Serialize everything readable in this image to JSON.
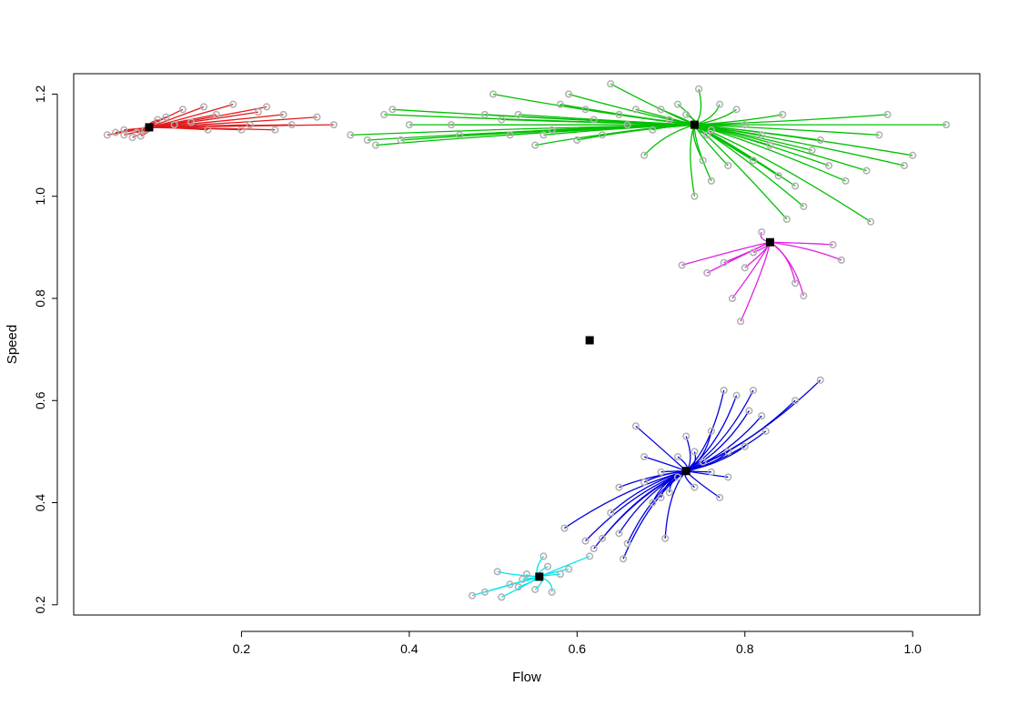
{
  "chart_data": {
    "type": "scatter",
    "title": "",
    "xlabel": "Flow",
    "ylabel": "Speed",
    "xlim": [
      0.0,
      1.08
    ],
    "ylim": [
      0.18,
      1.24
    ],
    "x_ticks": [
      0.2,
      0.4,
      0.6,
      0.8,
      1.0
    ],
    "x_tick_labels": [
      "0.2",
      "0.4",
      "0.6",
      "0.8",
      "1.0"
    ],
    "y_ticks": [
      0.2,
      0.4,
      0.6,
      0.8,
      1.0,
      1.2
    ],
    "y_tick_labels": [
      "0.2",
      "0.4",
      "0.6",
      "0.8",
      "1.0",
      "1.2"
    ],
    "grid": false,
    "legend": "none",
    "point_color": "#b0b0b0",
    "center_color": "#000000",
    "centers": [
      {
        "x": 0.09,
        "y": 1.135
      },
      {
        "x": 0.74,
        "y": 1.14
      },
      {
        "x": 0.83,
        "y": 0.91
      },
      {
        "x": 0.615,
        "y": 0.718
      },
      {
        "x": 0.73,
        "y": 0.462
      },
      {
        "x": 0.555,
        "y": 0.255
      }
    ],
    "series": [
      {
        "color": "#e31a1c",
        "center": {
          "x": 0.09,
          "y": 1.135
        },
        "points": [
          [
            0.04,
            1.12
          ],
          [
            0.05,
            1.125
          ],
          [
            0.06,
            1.12
          ],
          [
            0.07,
            1.115
          ],
          [
            0.08,
            1.118
          ],
          [
            0.085,
            1.13
          ],
          [
            0.1,
            1.15
          ],
          [
            0.11,
            1.155
          ],
          [
            0.13,
            1.17
          ],
          [
            0.14,
            1.145
          ],
          [
            0.155,
            1.175
          ],
          [
            0.17,
            1.16
          ],
          [
            0.19,
            1.18
          ],
          [
            0.2,
            1.13
          ],
          [
            0.22,
            1.165
          ],
          [
            0.23,
            1.175
          ],
          [
            0.25,
            1.16
          ],
          [
            0.26,
            1.14
          ],
          [
            0.29,
            1.155
          ],
          [
            0.31,
            1.14
          ],
          [
            0.06,
            1.13
          ],
          [
            0.075,
            1.125
          ],
          [
            0.12,
            1.14
          ],
          [
            0.16,
            1.13
          ],
          [
            0.21,
            1.14
          ],
          [
            0.24,
            1.13
          ]
        ]
      },
      {
        "color": "#00c000",
        "center": {
          "x": 0.74,
          "y": 1.14
        },
        "points": [
          [
            0.33,
            1.12
          ],
          [
            0.35,
            1.11
          ],
          [
            0.36,
            1.1
          ],
          [
            0.37,
            1.16
          ],
          [
            0.38,
            1.17
          ],
          [
            0.39,
            1.11
          ],
          [
            0.4,
            1.14
          ],
          [
            0.45,
            1.14
          ],
          [
            0.46,
            1.12
          ],
          [
            0.49,
            1.16
          ],
          [
            0.5,
            1.2
          ],
          [
            0.51,
            1.15
          ],
          [
            0.52,
            1.12
          ],
          [
            0.53,
            1.16
          ],
          [
            0.55,
            1.1
          ],
          [
            0.56,
            1.12
          ],
          [
            0.57,
            1.13
          ],
          [
            0.58,
            1.18
          ],
          [
            0.59,
            1.2
          ],
          [
            0.6,
            1.11
          ],
          [
            0.61,
            1.17
          ],
          [
            0.62,
            1.15
          ],
          [
            0.63,
            1.12
          ],
          [
            0.64,
            1.22
          ],
          [
            0.65,
            1.16
          ],
          [
            0.66,
            1.14
          ],
          [
            0.67,
            1.17
          ],
          [
            0.68,
            1.08
          ],
          [
            0.69,
            1.13
          ],
          [
            0.7,
            1.17
          ],
          [
            0.71,
            1.15
          ],
          [
            0.72,
            1.18
          ],
          [
            0.73,
            1.16
          ],
          [
            0.745,
            1.21
          ],
          [
            0.75,
            1.07
          ],
          [
            0.755,
            1.12
          ],
          [
            0.76,
            1.03
          ],
          [
            0.77,
            1.18
          ],
          [
            0.78,
            1.06
          ],
          [
            0.79,
            1.17
          ],
          [
            0.8,
            1.14
          ],
          [
            0.81,
            1.07
          ],
          [
            0.82,
            1.12
          ],
          [
            0.83,
            1.1
          ],
          [
            0.84,
            1.04
          ],
          [
            0.845,
            1.16
          ],
          [
            0.86,
            1.02
          ],
          [
            0.87,
            0.98
          ],
          [
            0.89,
            1.11
          ],
          [
            0.9,
            1.06
          ],
          [
            0.92,
            1.03
          ],
          [
            0.95,
            0.95
          ],
          [
            0.97,
            1.16
          ],
          [
            0.99,
            1.06
          ],
          [
            1.0,
            1.08
          ],
          [
            1.04,
            1.14
          ],
          [
            0.945,
            1.05
          ],
          [
            0.96,
            1.12
          ],
          [
            0.85,
            0.955
          ],
          [
            0.74,
            1.0
          ],
          [
            0.76,
            1.13
          ],
          [
            0.88,
            1.09
          ]
        ]
      },
      {
        "color": "#e020e0",
        "center": {
          "x": 0.83,
          "y": 0.91
        },
        "points": [
          [
            0.725,
            0.865
          ],
          [
            0.755,
            0.85
          ],
          [
            0.775,
            0.87
          ],
          [
            0.785,
            0.8
          ],
          [
            0.795,
            0.755
          ],
          [
            0.8,
            0.86
          ],
          [
            0.81,
            0.89
          ],
          [
            0.82,
            0.93
          ],
          [
            0.86,
            0.83
          ],
          [
            0.87,
            0.805
          ],
          [
            0.905,
            0.905
          ],
          [
            0.915,
            0.875
          ]
        ]
      },
      {
        "color": "#0000e0",
        "center": {
          "x": 0.73,
          "y": 0.462
        },
        "points": [
          [
            0.585,
            0.35
          ],
          [
            0.61,
            0.325
          ],
          [
            0.62,
            0.31
          ],
          [
            0.63,
            0.33
          ],
          [
            0.64,
            0.38
          ],
          [
            0.65,
            0.34
          ],
          [
            0.655,
            0.29
          ],
          [
            0.66,
            0.32
          ],
          [
            0.67,
            0.55
          ],
          [
            0.68,
            0.49
          ],
          [
            0.69,
            0.4
          ],
          [
            0.7,
            0.46
          ],
          [
            0.705,
            0.33
          ],
          [
            0.71,
            0.42
          ],
          [
            0.72,
            0.49
          ],
          [
            0.73,
            0.53
          ],
          [
            0.74,
            0.43
          ],
          [
            0.75,
            0.48
          ],
          [
            0.76,
            0.54
          ],
          [
            0.77,
            0.41
          ],
          [
            0.775,
            0.62
          ],
          [
            0.78,
            0.5
          ],
          [
            0.79,
            0.61
          ],
          [
            0.8,
            0.51
          ],
          [
            0.805,
            0.58
          ],
          [
            0.81,
            0.62
          ],
          [
            0.82,
            0.57
          ],
          [
            0.825,
            0.54
          ],
          [
            0.86,
            0.6
          ],
          [
            0.89,
            0.64
          ],
          [
            0.68,
            0.44
          ],
          [
            0.7,
            0.41
          ],
          [
            0.72,
            0.45
          ],
          [
            0.74,
            0.5
          ],
          [
            0.76,
            0.46
          ],
          [
            0.78,
            0.45
          ],
          [
            0.65,
            0.43
          ]
        ]
      },
      {
        "color": "#00e5ee",
        "center": {
          "x": 0.555,
          "y": 0.255
        },
        "points": [
          [
            0.475,
            0.218
          ],
          [
            0.49,
            0.225
          ],
          [
            0.505,
            0.265
          ],
          [
            0.51,
            0.215
          ],
          [
            0.52,
            0.24
          ],
          [
            0.53,
            0.235
          ],
          [
            0.535,
            0.25
          ],
          [
            0.54,
            0.26
          ],
          [
            0.55,
            0.23
          ],
          [
            0.56,
            0.295
          ],
          [
            0.565,
            0.275
          ],
          [
            0.57,
            0.225
          ],
          [
            0.58,
            0.26
          ],
          [
            0.59,
            0.27
          ],
          [
            0.615,
            0.295
          ]
        ]
      }
    ]
  }
}
